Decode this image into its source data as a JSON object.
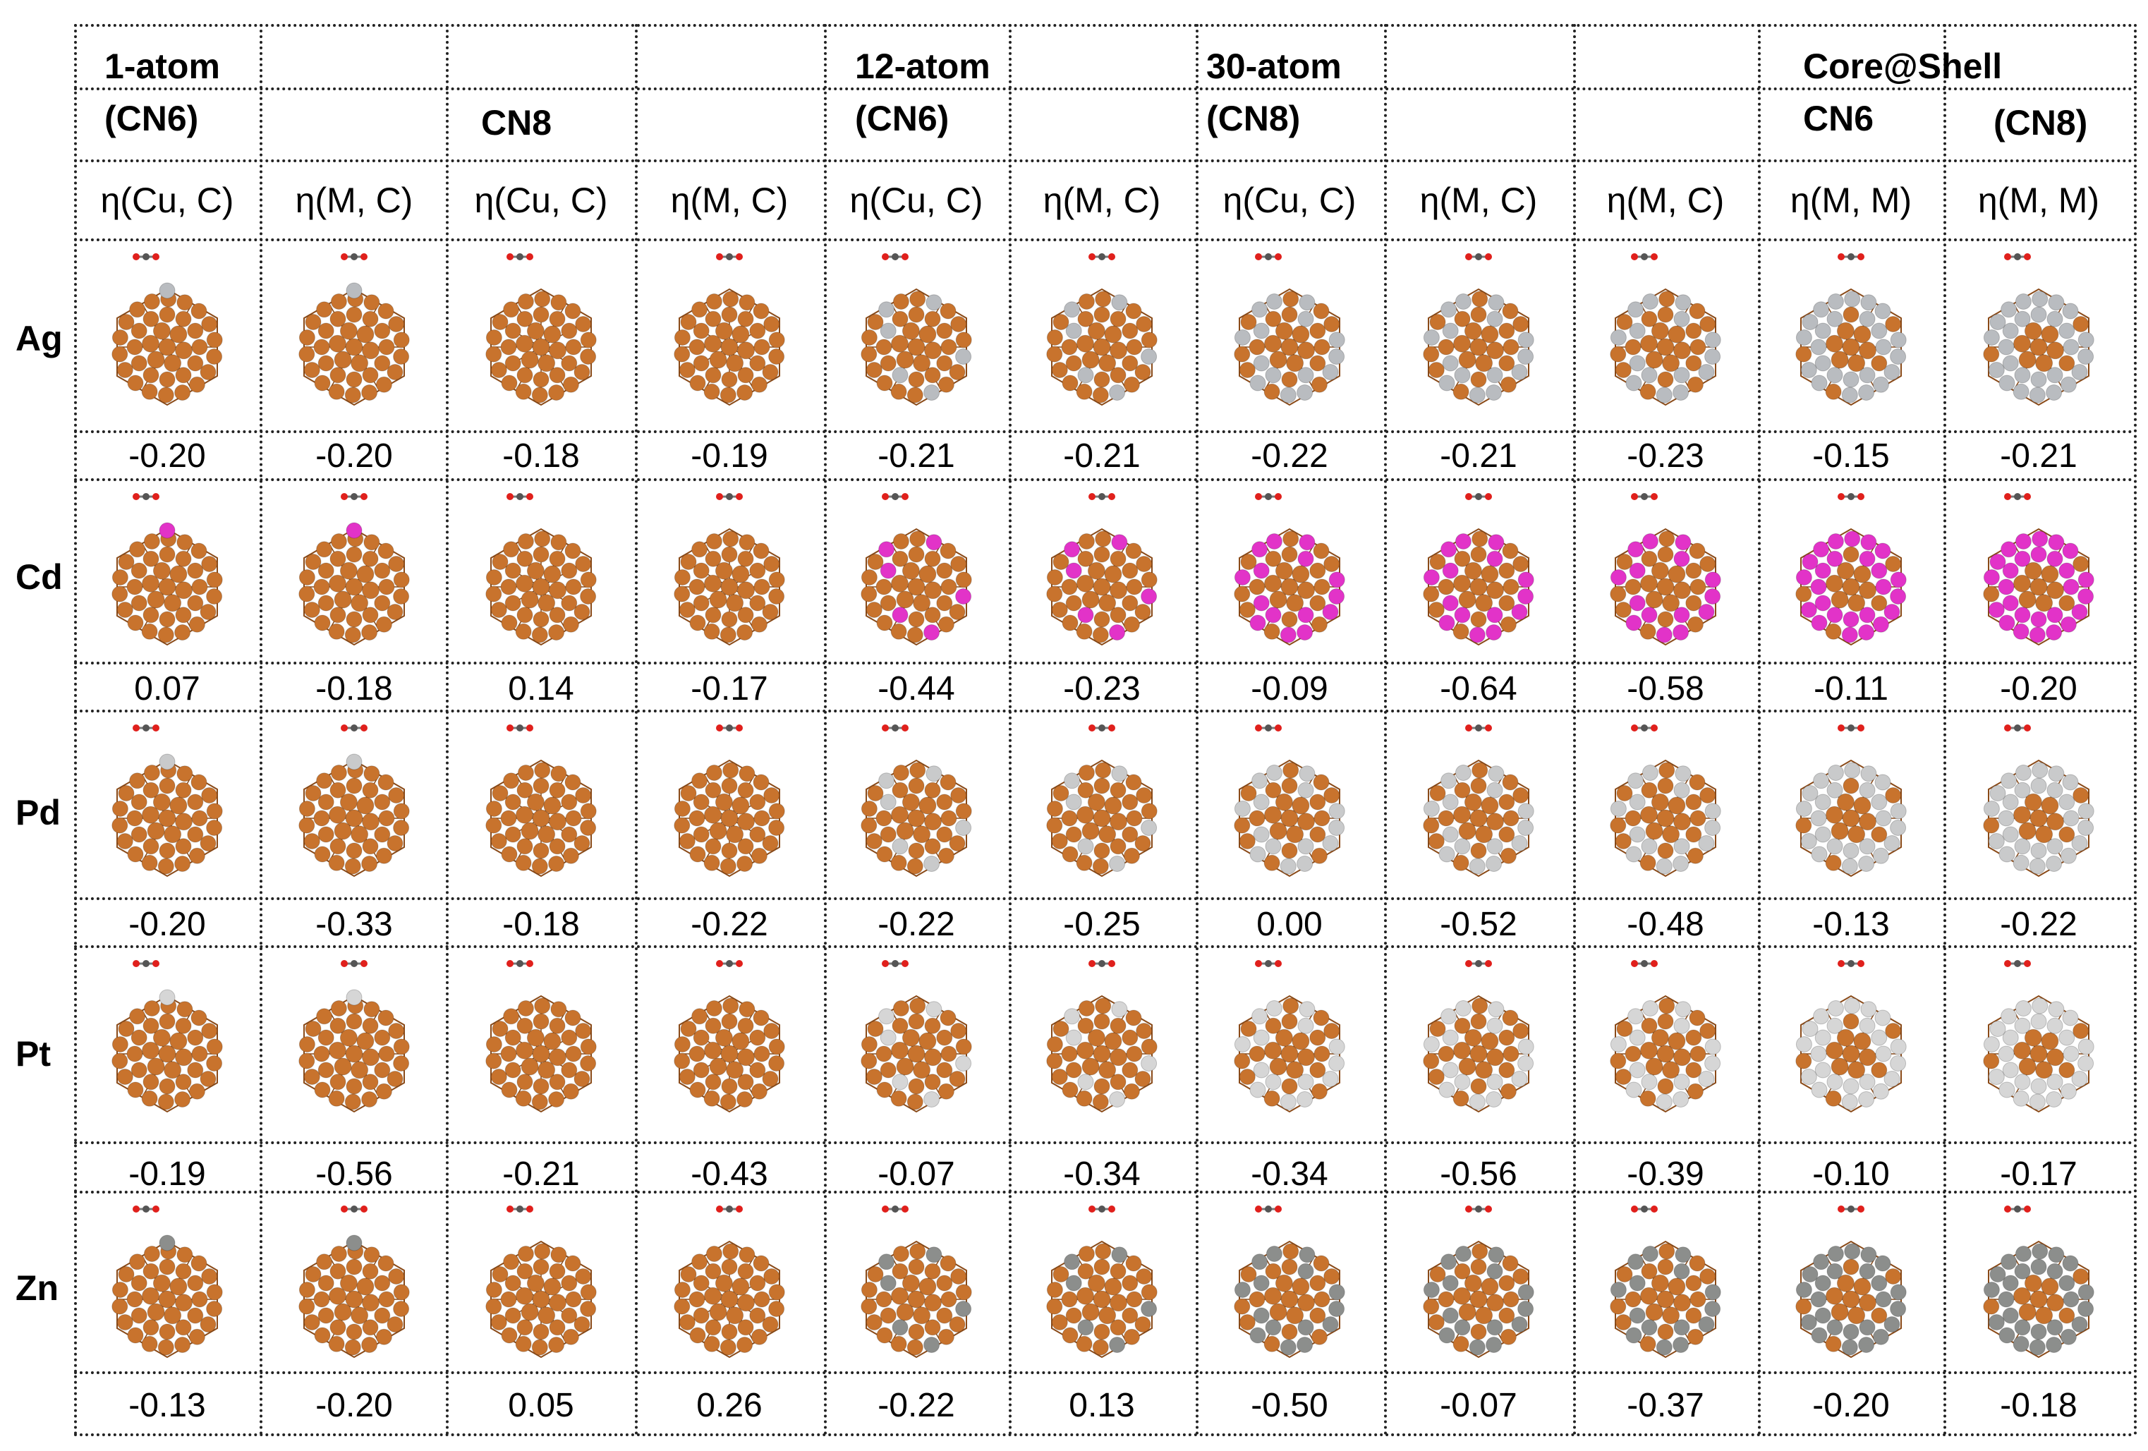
{
  "header": {
    "groups": [
      "1-atom",
      "12-atom",
      "30-atom",
      "Core@Shell"
    ],
    "subgroups": [
      "(CN6)",
      "CN8",
      "(CN6)",
      "(CN8)",
      "CN6",
      "(CN8)"
    ],
    "eta_labels": [
      "η(Cu, C)",
      "η(M, C)",
      "η(Cu, C)",
      "η(M, C)",
      "η(Cu, C)",
      "η(M, C)",
      "η(Cu, C)",
      "η(M, C)",
      "η(M, C)",
      "η(M, M)",
      "η(M, M)"
    ]
  },
  "rows": [
    {
      "element": "Ag",
      "values": [
        "-0.20",
        "-0.20",
        "-0.18",
        "-0.19",
        "-0.21",
        "-0.21",
        "-0.22",
        "-0.21",
        "-0.23",
        "-0.15",
        "-0.21"
      ]
    },
    {
      "element": "Cd",
      "values": [
        "0.07",
        "-0.18",
        "0.14",
        "-0.17",
        "-0.44",
        "-0.23",
        "-0.09",
        "-0.64",
        "-0.58",
        "-0.11",
        "-0.20"
      ]
    },
    {
      "element": "Pd",
      "values": [
        "-0.20",
        "-0.33",
        "-0.18",
        "-0.22",
        "-0.22",
        "-0.25",
        "0.00",
        "-0.52",
        "-0.48",
        "-0.13",
        "-0.22"
      ]
    },
    {
      "element": "Pt",
      "values": [
        "-0.19",
        "-0.56",
        "-0.21",
        "-0.43",
        "-0.07",
        "-0.34",
        "-0.34",
        "-0.56",
        "-0.39",
        "-0.10",
        "-0.17"
      ]
    },
    {
      "element": "Zn",
      "values": [
        "-0.13",
        "-0.20",
        "0.05",
        "0.26",
        "-0.22",
        "0.13",
        "-0.50",
        "-0.07",
        "-0.37",
        "-0.20",
        "-0.18"
      ]
    }
  ],
  "colors": {
    "copper": "#c8732d",
    "copper_dark": "#8a4a18",
    "Ag": "#b9bcc0",
    "Cd": "#e233c8",
    "Pd": "#c9cacb",
    "Pt": "#d6d6d6",
    "Zn": "#8c8e8c",
    "oxygen": "#e0201c",
    "carbon": "#555555"
  }
}
